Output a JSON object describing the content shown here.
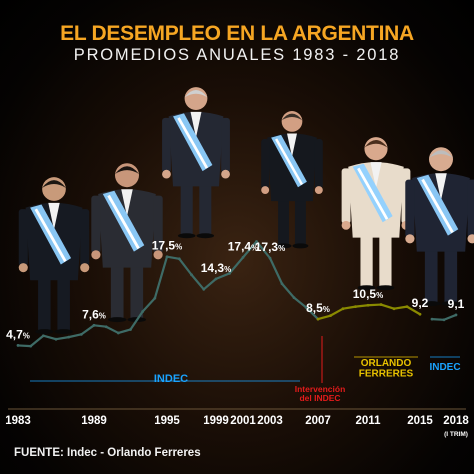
{
  "title": "EL DESEMPLEO EN LA ARGENTINA",
  "subtitle": "PROMEDIOS ANUALES 1983 - 2018",
  "source": "FUENTE: Indec - Orlando Ferreres",
  "colors": {
    "title": "#f6a623",
    "indec_line": "#3e6b66",
    "ferreres_line": "#8a8a00",
    "indec_label": "#1aa3ff",
    "ferreres_label": "#e8c200",
    "intervention_label": "#e31b1b",
    "value_label": "#ffffff"
  },
  "chart_data": {
    "type": "line",
    "x_ticks": [
      "1983",
      "1989",
      "1995",
      "1999",
      "2001",
      "2003",
      "2007",
      "2011",
      "2015",
      "2018"
    ],
    "x_tick_note": "(I TRIM)",
    "ylim": [
      0,
      22
    ],
    "series": [
      {
        "name": "INDEC",
        "x": [
          1983,
          1984,
          1985,
          1986,
          1987,
          1988,
          1989,
          1990,
          1991,
          1992,
          1993,
          1994,
          1995,
          1996,
          1997,
          1998,
          1999,
          2000,
          2001,
          2002,
          2003,
          2004,
          2005,
          2006,
          2007
        ],
        "values": [
          4.7,
          4.6,
          6.1,
          5.6,
          5.9,
          6.3,
          7.6,
          7.4,
          6.5,
          7.0,
          9.6,
          11.5,
          17.5,
          17.2,
          14.9,
          12.8,
          14.3,
          15.1,
          17.4,
          19.7,
          17.3,
          13.6,
          11.6,
          10.2,
          8.5
        ]
      },
      {
        "name": "ORLANDO FERRERES",
        "x": [
          2007,
          2008,
          2009,
          2010,
          2011,
          2012,
          2013,
          2014,
          2015
        ],
        "values": [
          8.5,
          9.0,
          10.0,
          10.3,
          10.5,
          10.6,
          10.0,
          10.3,
          9.2
        ]
      },
      {
        "name": "INDEC",
        "x": [
          2016,
          2017,
          2018
        ],
        "values": [
          8.5,
          8.4,
          9.1
        ]
      }
    ],
    "data_labels": [
      {
        "x": 1983,
        "value": 4.7,
        "text": "4,7%"
      },
      {
        "x": 1989,
        "value": 7.6,
        "text": "7,6%"
      },
      {
        "x": 1995,
        "value": 17.5,
        "text": "17,5%"
      },
      {
        "x": 1999,
        "value": 14.3,
        "text": "14,3%"
      },
      {
        "x": 2001,
        "value": 17.4,
        "text": "17,4%"
      },
      {
        "x": 2003,
        "value": 17.3,
        "text": "17,3%"
      },
      {
        "x": 2007,
        "value": 8.5,
        "text": "8,5%"
      },
      {
        "x": 2011,
        "value": 10.5,
        "text": "10,5%"
      },
      {
        "x": 2015,
        "value": 9.2,
        "text": "9,2"
      },
      {
        "x": 2018,
        "value": 9.1,
        "text": "9,1"
      }
    ],
    "annotations": [
      {
        "key": "indec_1",
        "text": "INDEC"
      },
      {
        "key": "ferreres",
        "lines": [
          "ORLANDO",
          "FERRERES"
        ]
      },
      {
        "key": "intervention",
        "lines": [
          "Intervención",
          "del INDEC"
        ]
      },
      {
        "key": "indec_2",
        "text": "INDEC"
      }
    ],
    "grid": "vertical gold lines at each labeled year",
    "legend": "none"
  },
  "figures": [
    {
      "label": "president-1983",
      "sash": "#8fd0ff",
      "skin": "#c89a7a",
      "suit": "#161a22",
      "hair": "#1c1712"
    },
    {
      "label": "president-1989",
      "sash": "#8fd0ff",
      "skin": "#c8967a",
      "suit": "#2a2c33",
      "hair": "#1a1410"
    },
    {
      "label": "president-1995",
      "sash": "#8fd0ff",
      "skin": "#d4a58a",
      "suit": "#242833",
      "hair": "#cfcfcf"
    },
    {
      "label": "president-2003",
      "sash": "#8fd0ff",
      "skin": "#d29f83",
      "suit": "#15181e",
      "hair": "#3a3027"
    },
    {
      "label": "president-2007",
      "sash": "#8fd0ff",
      "skin": "#d9a98d",
      "suit": "#e8dccb",
      "hair": "#4a2e1c"
    },
    {
      "label": "president-2015",
      "sash": "#8fd0ff",
      "skin": "#d8ab90",
      "suit": "#1f2433",
      "hair": "#bdbdbd"
    }
  ]
}
